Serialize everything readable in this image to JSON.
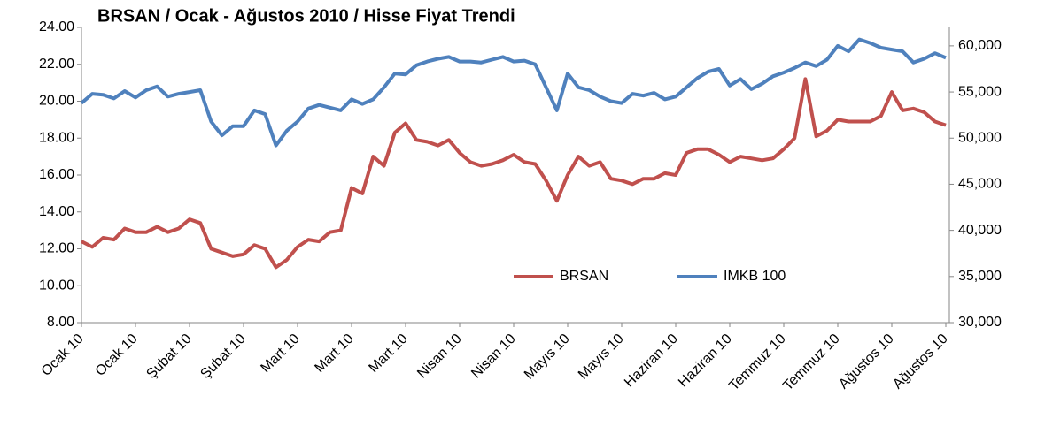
{
  "chart_data": {
    "type": "line",
    "title": "BRSAN / Ocak - Ağustos 2010 / Hisse Fiyat Trendi",
    "categories": [
      "Ocak 10",
      null,
      null,
      null,
      null,
      "Ocak 10",
      null,
      null,
      null,
      null,
      "Şubat 10",
      null,
      null,
      null,
      null,
      "Şubat 10",
      null,
      null,
      null,
      null,
      "Mart 10",
      null,
      null,
      null,
      null,
      "Mart 10",
      null,
      null,
      null,
      null,
      "Mart 10",
      null,
      null,
      null,
      null,
      "Nisan 10",
      null,
      null,
      null,
      null,
      "Nisan 10",
      null,
      null,
      null,
      null,
      "Mayıs 10",
      null,
      null,
      null,
      null,
      "Mayıs 10",
      null,
      null,
      null,
      null,
      "Haziran 10",
      null,
      null,
      null,
      null,
      "Haziran 10",
      null,
      null,
      null,
      null,
      "Temmuz 10",
      null,
      null,
      null,
      null,
      "Temmuz 10",
      null,
      null,
      null,
      null,
      "Ağustos 10",
      null,
      null,
      null,
      null,
      "Ağustos 10"
    ],
    "series": [
      {
        "name": "BRSAN",
        "color": "#c0504d",
        "axis": "y",
        "values": [
          12.4,
          12.1,
          12.6,
          12.5,
          13.1,
          12.9,
          12.9,
          13.2,
          12.9,
          13.1,
          13.6,
          13.4,
          12.0,
          11.8,
          11.6,
          11.7,
          12.2,
          12.0,
          11.0,
          11.4,
          12.1,
          12.5,
          12.4,
          12.9,
          13.0,
          15.3,
          15.0,
          17.0,
          16.5,
          18.3,
          18.8,
          17.9,
          17.8,
          17.6,
          17.9,
          17.2,
          16.7,
          16.5,
          16.6,
          16.8,
          17.1,
          16.7,
          16.6,
          15.7,
          14.6,
          16.0,
          17.0,
          16.5,
          16.7,
          15.8,
          15.7,
          15.5,
          15.8,
          15.8,
          16.1,
          16.0,
          17.2,
          17.4,
          17.4,
          17.1,
          16.7,
          17.0,
          16.9,
          16.8,
          16.9,
          17.4,
          18.0,
          21.2,
          18.1,
          18.4,
          19.0,
          18.9,
          18.9,
          18.9,
          19.2,
          20.5,
          19.5,
          19.6,
          19.4,
          18.9,
          18.7
        ]
      },
      {
        "name": "IMKB 100",
        "color": "#4f81bd",
        "axis": "y2",
        "values": [
          53800,
          54800,
          54700,
          54300,
          55100,
          54400,
          55200,
          55600,
          54500,
          54800,
          55000,
          55200,
          51800,
          50300,
          51300,
          51300,
          53000,
          52600,
          49200,
          50800,
          51800,
          53200,
          53600,
          53300,
          53000,
          54200,
          53700,
          54200,
          55500,
          57000,
          56900,
          57900,
          58300,
          58600,
          58800,
          58300,
          58300,
          58200,
          58500,
          58800,
          58300,
          58400,
          58000,
          55500,
          53000,
          57000,
          55500,
          55200,
          54500,
          54000,
          53800,
          54800,
          54600,
          54900,
          54200,
          54500,
          55500,
          56500,
          57200,
          57500,
          55700,
          56400,
          55300,
          55900,
          56700,
          57100,
          57600,
          58200,
          57800,
          58500,
          60000,
          59400,
          60700,
          60300,
          59800,
          59600,
          59400,
          58200,
          58600,
          59200,
          58700
        ]
      }
    ],
    "ylim": [
      8,
      24
    ],
    "yticks": [
      {
        "value": 8,
        "label": "8.00"
      },
      {
        "value": 10,
        "label": "10.00"
      },
      {
        "value": 12,
        "label": "12.00"
      },
      {
        "value": 14,
        "label": "14.00"
      },
      {
        "value": 16,
        "label": "16.00"
      },
      {
        "value": 18,
        "label": "18.00"
      },
      {
        "value": 20,
        "label": "20.00"
      },
      {
        "value": 22,
        "label": "22.00"
      },
      {
        "value": 24,
        "label": "24.00"
      }
    ],
    "y2lim": [
      30000,
      62000
    ],
    "y2ticks": [
      {
        "value": 30000,
        "label": "30,000"
      },
      {
        "value": 35000,
        "label": "35,000"
      },
      {
        "value": 40000,
        "label": "40,000"
      },
      {
        "value": 45000,
        "label": "45,000"
      },
      {
        "value": 50000,
        "label": "50,000"
      },
      {
        "value": 55000,
        "label": "55,000"
      },
      {
        "value": 60000,
        "label": "60,000"
      }
    ],
    "grid": false,
    "legend": "lower center"
  }
}
